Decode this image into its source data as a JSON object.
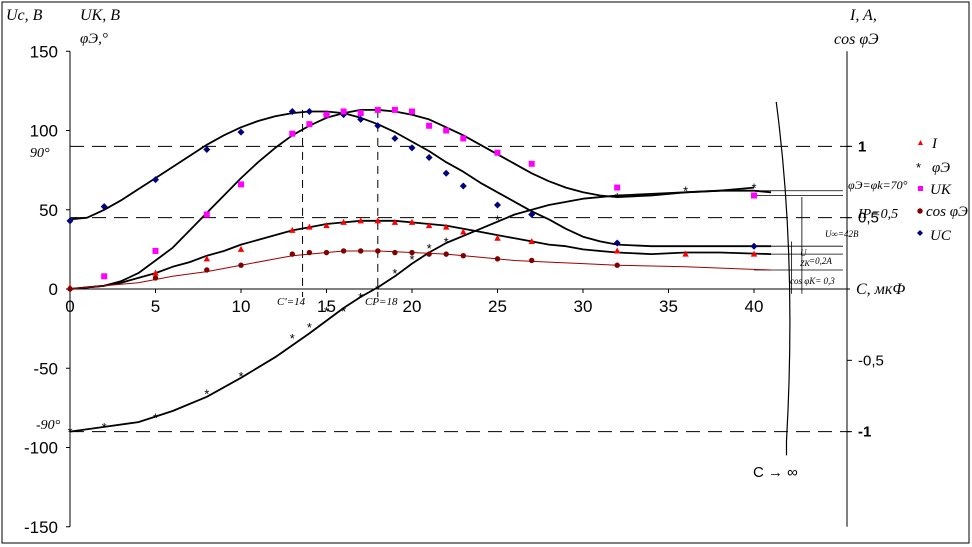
{
  "chart_data": {
    "type": "scatter",
    "x_ticks": [
      "0",
      "5",
      "10",
      "15",
      "20",
      "25",
      "30",
      "35",
      "40"
    ],
    "xlim": [
      0,
      45
    ],
    "y_left_ticks": [
      "150",
      "100",
      "50",
      "0",
      "-50",
      "-100",
      "-150"
    ],
    "ylim": [
      -150,
      150
    ],
    "y_right_ticks": [
      "1",
      "0,5",
      "-0,5",
      "-1"
    ],
    "left_axis_title_1": "Uc, В",
    "left_axis_title_2": "UK, В",
    "left_axis_title_3": "φЭ,°",
    "right_axis_title_1": "I, A,",
    "right_axis_title_2": "cos φЭ",
    "x_axis_title": "C, мкФ",
    "annotations": {
      "deg90": "90°",
      "degm90": "-90°",
      "c_prime": "C′=14",
      "cp": "CP=18",
      "phi_limit": "φЭ=φk=70°",
      "ip": "IP=0,5",
      "u_inf": "U∞=42В",
      "u_zk": "U",
      "u_zk2": "ZK",
      "u_zk_val": "=0,2A",
      "cos_limit": "cos φK= 0,3",
      "c_inf": "C → ∞"
    },
    "legend": [
      {
        "label": "I",
        "marker": "triangle",
        "color": "#ff0000"
      },
      {
        "label": "φЭ",
        "marker": "star",
        "color": "#000000"
      },
      {
        "label": "UK",
        "marker": "square",
        "color": "#ff00ff"
      },
      {
        "label": "cos φЭ",
        "marker": "circle",
        "color": "#800000"
      },
      {
        "label": "UC",
        "marker": "diamond",
        "color": "#000080"
      }
    ],
    "series": [
      {
        "name": "UC",
        "marker": "diamond",
        "color": "#000080",
        "points": [
          [
            0,
            43
          ],
          [
            2,
            52
          ],
          [
            5,
            69
          ],
          [
            8,
            88
          ],
          [
            10,
            99
          ],
          [
            13,
            112
          ],
          [
            14,
            112
          ],
          [
            15,
            110
          ],
          [
            16,
            110
          ],
          [
            17,
            107
          ],
          [
            18,
            103
          ],
          [
            19,
            95
          ],
          [
            20,
            89
          ],
          [
            21,
            83
          ],
          [
            22,
            73
          ],
          [
            23,
            65
          ],
          [
            25,
            53
          ],
          [
            27,
            47
          ],
          [
            32,
            29
          ],
          [
            40,
            27
          ]
        ]
      },
      {
        "name": "UK",
        "marker": "square",
        "color": "#ff00ff",
        "points": [
          [
            2,
            8
          ],
          [
            5,
            24
          ],
          [
            8,
            47
          ],
          [
            10,
            66
          ],
          [
            13,
            98
          ],
          [
            14,
            104
          ],
          [
            15,
            110
          ],
          [
            16,
            112
          ],
          [
            17,
            111
          ],
          [
            18,
            113
          ],
          [
            19,
            113
          ],
          [
            20,
            112
          ],
          [
            21,
            103
          ],
          [
            22,
            100
          ],
          [
            23,
            95
          ],
          [
            25,
            86
          ],
          [
            27,
            79
          ],
          [
            32,
            64
          ],
          [
            40,
            59
          ]
        ]
      },
      {
        "name": "I",
        "marker": "triangle",
        "color": "#ff0000",
        "points": [
          [
            0,
            1
          ],
          [
            5,
            10
          ],
          [
            8,
            19
          ],
          [
            10,
            25
          ],
          [
            13,
            37
          ],
          [
            14,
            39
          ],
          [
            15,
            40
          ],
          [
            16,
            42
          ],
          [
            17,
            43
          ],
          [
            18,
            43
          ],
          [
            19,
            42
          ],
          [
            20,
            42
          ],
          [
            21,
            40
          ],
          [
            22,
            39
          ],
          [
            23,
            36
          ],
          [
            25,
            32
          ],
          [
            27,
            30
          ],
          [
            32,
            24
          ],
          [
            36,
            22
          ],
          [
            40,
            22
          ]
        ]
      },
      {
        "name": "cos φЭ",
        "marker": "circle",
        "color": "#800000",
        "points": [
          [
            0,
            0
          ],
          [
            5,
            7
          ],
          [
            8,
            12
          ],
          [
            10,
            15
          ],
          [
            13,
            22
          ],
          [
            14,
            23
          ],
          [
            15,
            23
          ],
          [
            16,
            24
          ],
          [
            17,
            24
          ],
          [
            18,
            24
          ],
          [
            19,
            23
          ],
          [
            20,
            23
          ],
          [
            21,
            22
          ],
          [
            22,
            22
          ],
          [
            23,
            21
          ],
          [
            25,
            19
          ],
          [
            27,
            18
          ],
          [
            32,
            15
          ]
        ]
      },
      {
        "name": "φЭ",
        "marker": "star",
        "color": "#000000",
        "points": [
          [
            0,
            -90
          ],
          [
            2,
            -87
          ],
          [
            5,
            -81
          ],
          [
            8,
            -66
          ],
          [
            10,
            -55
          ],
          [
            13,
            -31
          ],
          [
            14,
            -24
          ],
          [
            15,
            -14
          ],
          [
            16,
            -14
          ],
          [
            17,
            -5
          ],
          [
            18,
            0
          ],
          [
            19,
            10
          ],
          [
            20,
            19
          ],
          [
            21,
            26
          ],
          [
            22,
            30
          ],
          [
            25,
            44
          ],
          [
            32,
            58
          ],
          [
            36,
            62
          ],
          [
            40,
            64
          ]
        ]
      }
    ],
    "curves": [
      {
        "name": "UC fit",
        "color": "#000000",
        "points": [
          [
            0,
            44
          ],
          [
            1,
            45
          ],
          [
            2,
            50
          ],
          [
            3,
            56
          ],
          [
            4,
            63
          ],
          [
            5,
            70
          ],
          [
            6,
            77
          ],
          [
            7,
            84
          ],
          [
            8,
            91
          ],
          [
            9,
            97
          ],
          [
            10,
            102
          ],
          [
            11,
            106
          ],
          [
            12,
            109
          ],
          [
            13,
            111
          ],
          [
            14,
            112
          ],
          [
            15,
            112
          ],
          [
            16,
            111
          ],
          [
            17,
            108
          ],
          [
            18,
            104
          ],
          [
            19,
            99
          ],
          [
            20,
            93
          ],
          [
            21,
            87
          ],
          [
            22,
            80
          ],
          [
            23,
            74
          ],
          [
            24,
            67
          ],
          [
            25,
            61
          ],
          [
            26,
            55
          ],
          [
            27,
            49
          ],
          [
            28,
            44
          ],
          [
            29,
            38
          ],
          [
            30,
            33
          ],
          [
            31,
            30
          ],
          [
            32,
            28
          ],
          [
            34,
            27
          ],
          [
            36,
            27
          ],
          [
            38,
            27
          ],
          [
            41,
            27
          ]
        ]
      },
      {
        "name": "UK fit",
        "color": "#000000",
        "points": [
          [
            0,
            0
          ],
          [
            2,
            2
          ],
          [
            3,
            5
          ],
          [
            4,
            10
          ],
          [
            5,
            18
          ],
          [
            6,
            26
          ],
          [
            7,
            37
          ],
          [
            8,
            48
          ],
          [
            9,
            59
          ],
          [
            10,
            70
          ],
          [
            11,
            80
          ],
          [
            12,
            89
          ],
          [
            13,
            97
          ],
          [
            14,
            103
          ],
          [
            15,
            108
          ],
          [
            16,
            111
          ],
          [
            17,
            113
          ],
          [
            18,
            113
          ],
          [
            19,
            112
          ],
          [
            20,
            110
          ],
          [
            21,
            107
          ],
          [
            22,
            102
          ],
          [
            23,
            97
          ],
          [
            24,
            91
          ],
          [
            25,
            85
          ],
          [
            26,
            79
          ],
          [
            27,
            73
          ],
          [
            28,
            68
          ],
          [
            29,
            64
          ],
          [
            30,
            61
          ],
          [
            31,
            59
          ],
          [
            32,
            58
          ],
          [
            34,
            59
          ],
          [
            36,
            61
          ],
          [
            38,
            62
          ],
          [
            40,
            62
          ],
          [
            41,
            61
          ]
        ]
      },
      {
        "name": "I fit",
        "color": "#000000",
        "points": [
          [
            0,
            0
          ],
          [
            1,
            1
          ],
          [
            2,
            2
          ],
          [
            3,
            4
          ],
          [
            4,
            7
          ],
          [
            5,
            10
          ],
          [
            6,
            14
          ],
          [
            7,
            17
          ],
          [
            8,
            21
          ],
          [
            9,
            24
          ],
          [
            10,
            28
          ],
          [
            11,
            31
          ],
          [
            12,
            34
          ],
          [
            13,
            37
          ],
          [
            14,
            39
          ],
          [
            15,
            41
          ],
          [
            16,
            42
          ],
          [
            17,
            43
          ],
          [
            18,
            43
          ],
          [
            19,
            43
          ],
          [
            20,
            42
          ],
          [
            21,
            41
          ],
          [
            22,
            40
          ],
          [
            23,
            38
          ],
          [
            24,
            36
          ],
          [
            25,
            34
          ],
          [
            26,
            32
          ],
          [
            27,
            30
          ],
          [
            28,
            28
          ],
          [
            29,
            27
          ],
          [
            30,
            25
          ],
          [
            31,
            24
          ],
          [
            32,
            23
          ],
          [
            34,
            22
          ],
          [
            36,
            23
          ],
          [
            38,
            23
          ],
          [
            41,
            22
          ]
        ]
      },
      {
        "name": "cos fit",
        "color": "#a00000",
        "points": [
          [
            0,
            0
          ],
          [
            2,
            2
          ],
          [
            4,
            4
          ],
          [
            6,
            8
          ],
          [
            8,
            11
          ],
          [
            10,
            15
          ],
          [
            12,
            19
          ],
          [
            13,
            21
          ],
          [
            14,
            22
          ],
          [
            16,
            24
          ],
          [
            18,
            24
          ],
          [
            20,
            23
          ],
          [
            22,
            22
          ],
          [
            24,
            20
          ],
          [
            26,
            18
          ],
          [
            28,
            17
          ],
          [
            30,
            16
          ],
          [
            32,
            15
          ],
          [
            36,
            14
          ],
          [
            41,
            12
          ]
        ]
      },
      {
        "name": "phi fit",
        "color": "#000000",
        "points": [
          [
            0,
            -90
          ],
          [
            2,
            -87
          ],
          [
            4,
            -84
          ],
          [
            6,
            -77
          ],
          [
            8,
            -68
          ],
          [
            10,
            -56
          ],
          [
            12,
            -43
          ],
          [
            14,
            -28
          ],
          [
            16,
            -12
          ],
          [
            17,
            -5
          ],
          [
            18,
            1
          ],
          [
            19,
            8
          ],
          [
            20,
            16
          ],
          [
            21,
            23
          ],
          [
            22,
            29
          ],
          [
            24,
            38
          ],
          [
            26,
            47
          ],
          [
            28,
            53
          ],
          [
            30,
            57
          ],
          [
            32,
            59
          ],
          [
            34,
            60
          ],
          [
            36,
            61
          ],
          [
            38,
            62
          ],
          [
            40,
            64
          ]
        ]
      }
    ]
  }
}
